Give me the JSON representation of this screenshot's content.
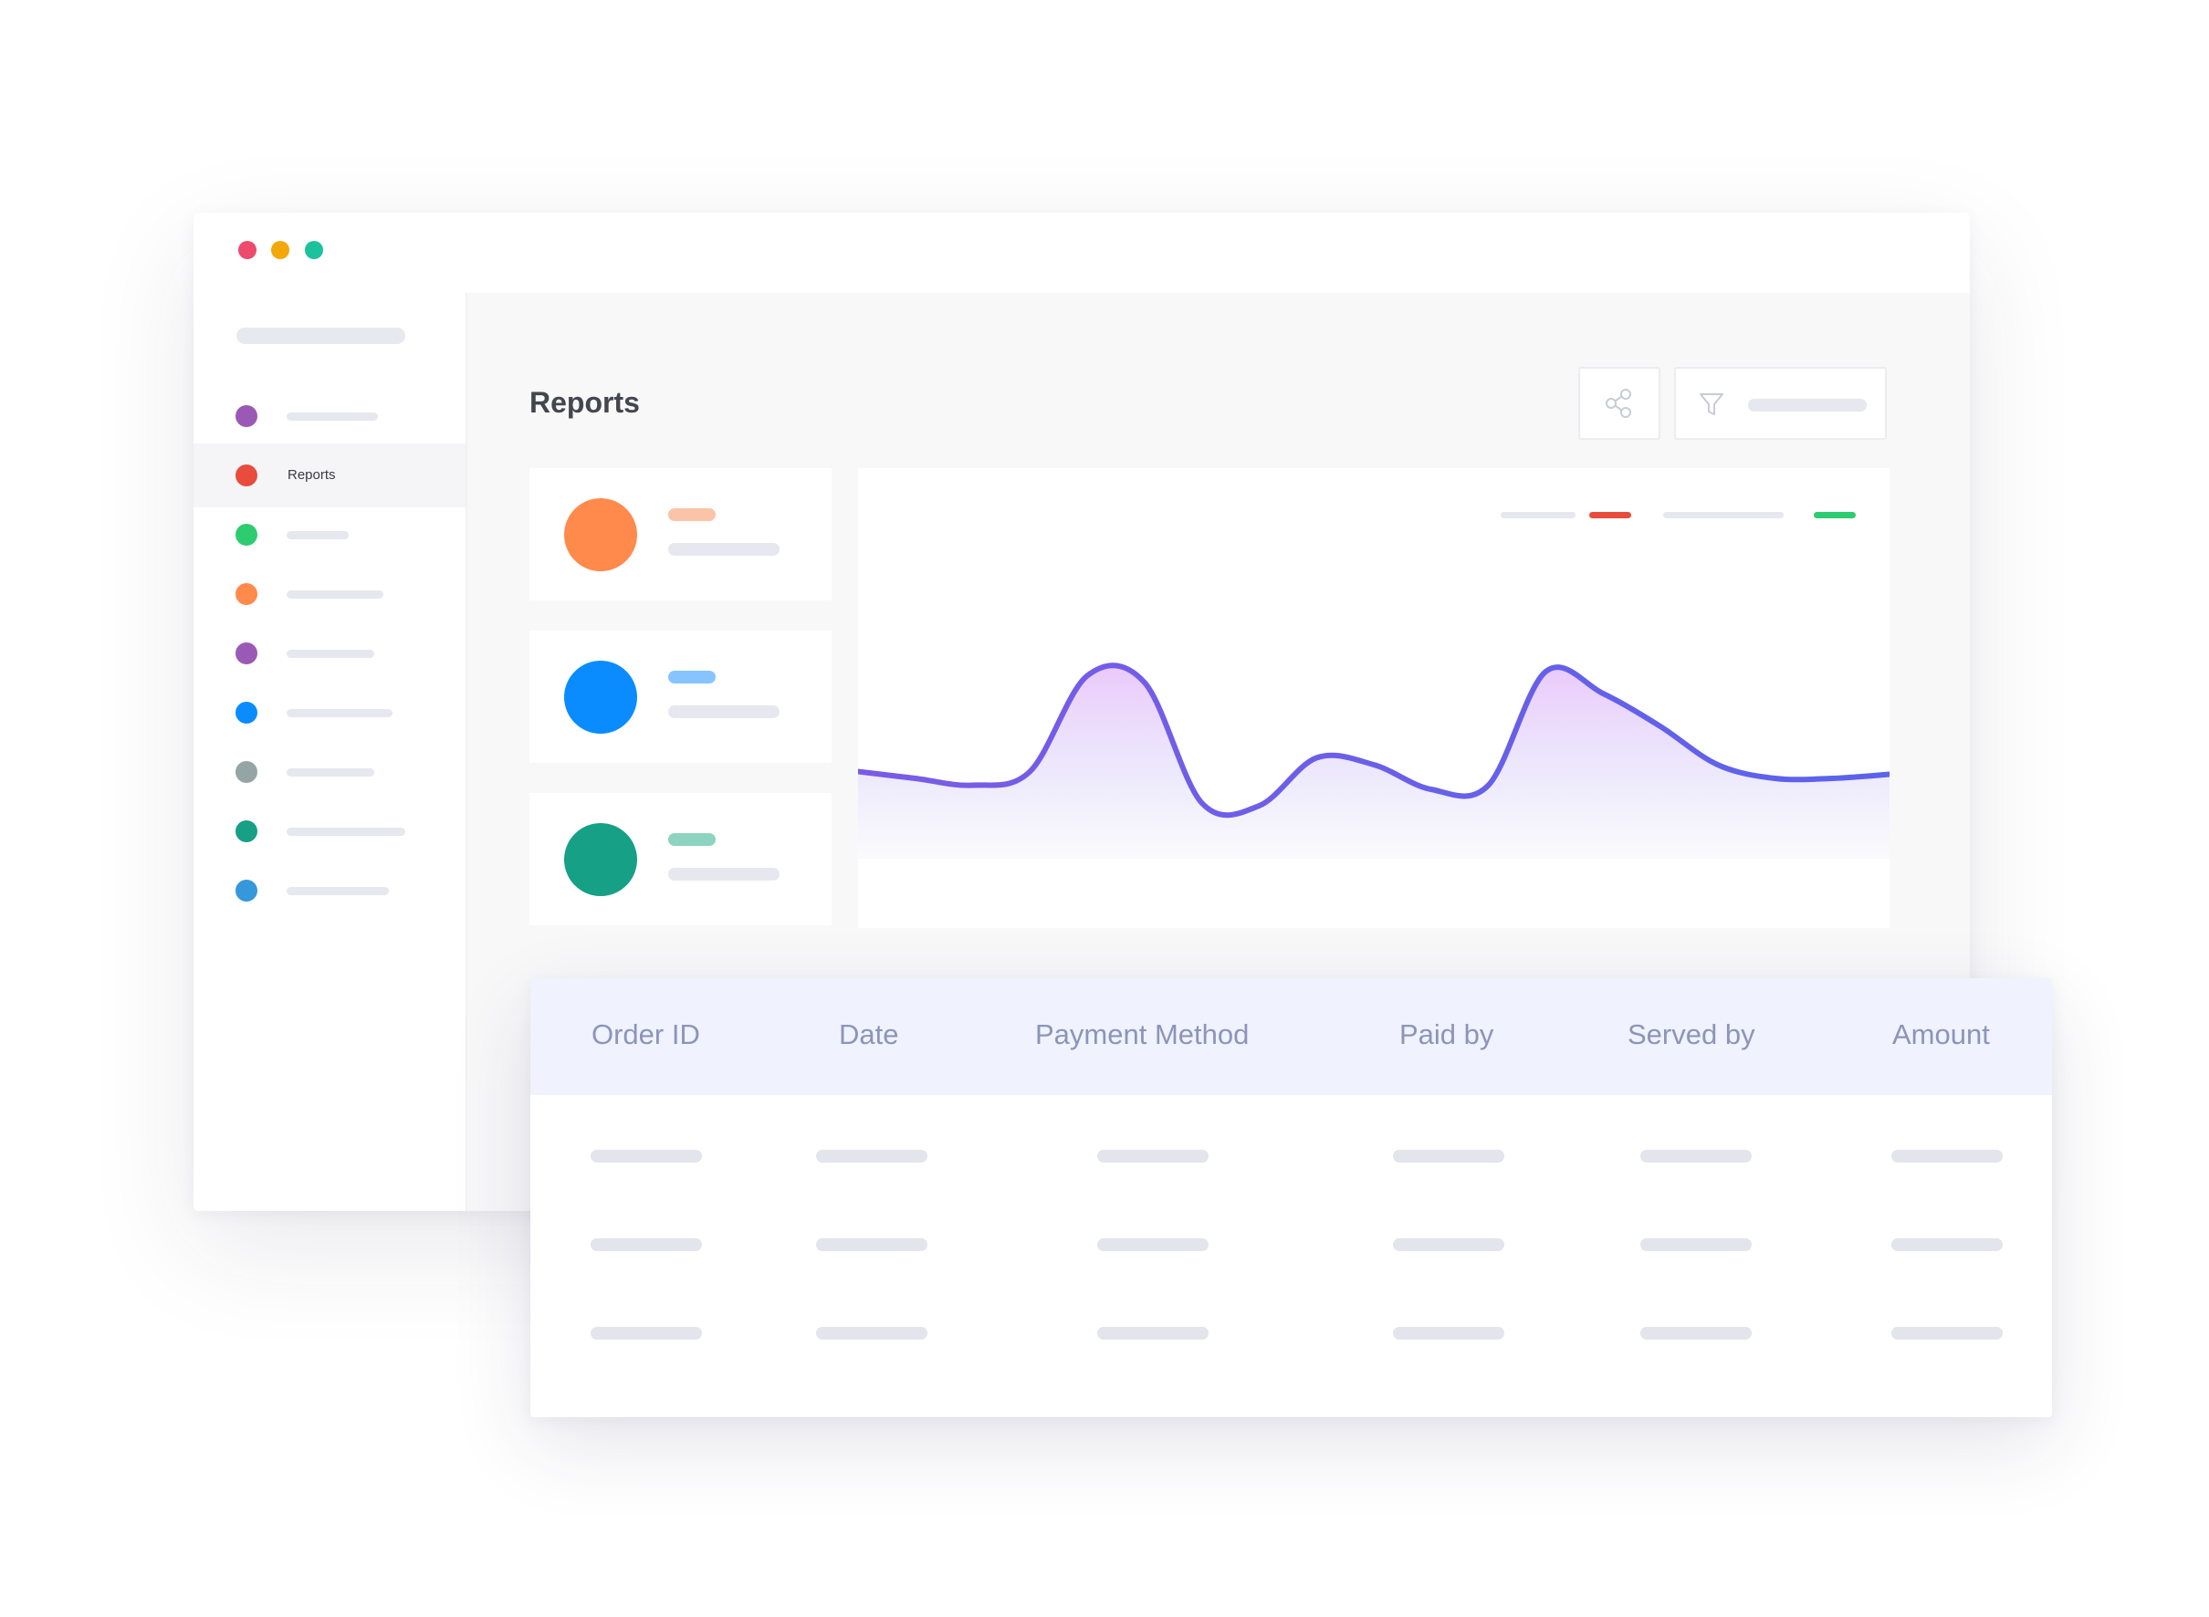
{
  "window": {
    "controls": [
      {
        "name": "close",
        "color": "#ee4a6d"
      },
      {
        "name": "minimize",
        "color": "#f3a70b"
      },
      {
        "name": "maximize",
        "color": "#1cc29b"
      }
    ]
  },
  "sidebar": {
    "items": [
      {
        "label": "",
        "dot_color": "#9b59b6",
        "active": false
      },
      {
        "label": "Reports",
        "dot_color": "#e74c3c",
        "active": true
      },
      {
        "label": "",
        "dot_color": "#2ecc71",
        "active": false
      },
      {
        "label": "",
        "dot_color": "#ff8a4c",
        "active": false
      },
      {
        "label": "",
        "dot_color": "#9b59b6",
        "active": false
      },
      {
        "label": "",
        "dot_color": "#0a8cff",
        "active": false
      },
      {
        "label": "",
        "dot_color": "#95a5a6",
        "active": false
      },
      {
        "label": "",
        "dot_color": "#16a085",
        "active": false
      },
      {
        "label": "",
        "dot_color": "#3498db",
        "active": false
      }
    ]
  },
  "main": {
    "title": "Reports",
    "toolbar": {
      "share_icon": "share-icon",
      "filter_icon": "filter-icon"
    },
    "stat_cards": [
      {
        "circle_color": "#ff8a4c",
        "pill_color": "#fbc3a8"
      },
      {
        "circle_color": "#0a8cff",
        "pill_color": "#86c4ff"
      },
      {
        "circle_color": "#16a085",
        "pill_color": "#8ed3bf"
      }
    ],
    "chart_legend": [
      {
        "swatch_color": "#e74c3c"
      },
      {
        "swatch_color": "#2ecc71"
      }
    ]
  },
  "chart_data": {
    "type": "area",
    "line_color": "#6c63e8",
    "fill_color": "#e9c6fa",
    "values": [
      0.05,
      0.0,
      -0.05,
      0.05,
      0.75,
      0.7,
      -0.18,
      -0.2,
      0.15,
      0.1,
      -0.08,
      -0.05,
      0.78,
      0.62,
      0.38,
      0.1,
      0.0,
      0.0,
      0.03
    ]
  },
  "table": {
    "headers": [
      "Order ID",
      "Date",
      "Payment Method",
      "Paid by",
      "Served by",
      "Amount"
    ],
    "rows": [
      [
        "",
        "",
        "",
        "",
        "",
        ""
      ],
      [
        "",
        "",
        "",
        "",
        "",
        ""
      ],
      [
        "",
        "",
        "",
        "",
        "",
        ""
      ]
    ]
  }
}
